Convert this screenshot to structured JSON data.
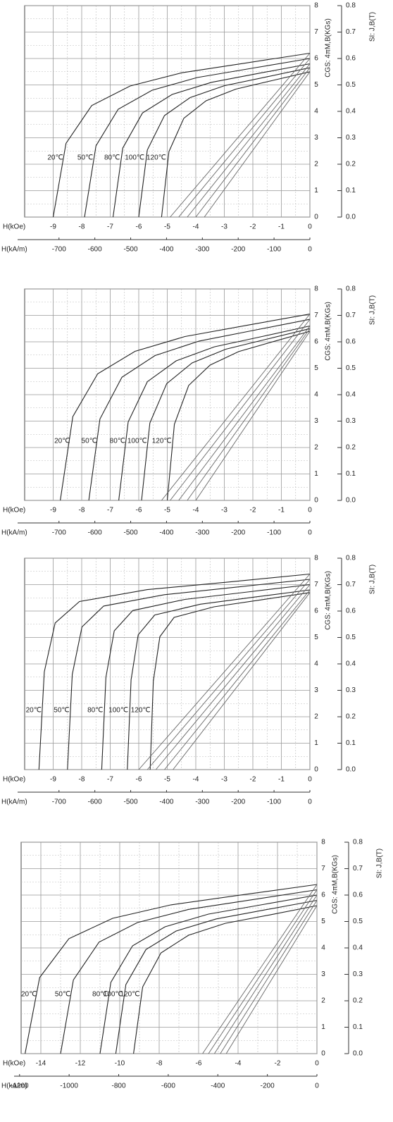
{
  "chart_data": [
    {
      "type": "line",
      "x_label": "H(kOe)",
      "x2_label": "H(kA/m)",
      "y_label": "CGS: 4πM,B(KGs)",
      "y2_label": "SI: J,B(T)",
      "grid": true,
      "xlim": [
        -10,
        0
      ],
      "xticks": [
        -9,
        -8,
        -7,
        -6,
        -5,
        -4,
        -3,
        -2,
        -1,
        0
      ],
      "x2lim": [
        -795.8,
        0
      ],
      "x2ticks": [
        -700,
        -600,
        -500,
        -400,
        -300,
        -200,
        -100,
        0
      ],
      "ylim": [
        0,
        8
      ],
      "yticks": [
        0,
        1,
        2,
        3,
        4,
        5,
        6,
        7,
        8
      ],
      "y2lim": [
        0,
        0.8
      ],
      "y2ticks": [
        {
          "value": 0,
          "label": "0.0"
        },
        0.1,
        0.2,
        0.3,
        0.4,
        0.5,
        0.6,
        0.7,
        0.8
      ],
      "series": [
        {
          "name": "20℃",
          "color": "#222222",
          "x": [
            -9,
            -8.55,
            -7.65,
            -6.3,
            -4.5,
            -2.25,
            0
          ],
          "values": [
            0,
            2.79,
            4.22,
            4.96,
            5.46,
            5.83,
            6.2
          ]
        },
        {
          "name": "50℃",
          "color": "#222222",
          "x": [
            -7.9,
            -7.5,
            -6.72,
            -5.53,
            -3.95,
            -1.98,
            0
          ],
          "values": [
            0,
            2.7,
            4.08,
            4.8,
            5.28,
            5.64,
            6.0
          ]
        },
        {
          "name": "80℃",
          "color": "#222222",
          "x": [
            -6.9,
            -6.56,
            -5.87,
            -4.83,
            -3.45,
            -1.73,
            0
          ],
          "values": [
            0,
            2.61,
            3.94,
            4.64,
            5.1,
            5.45,
            5.8
          ]
        },
        {
          "name": "100℃",
          "color": "#222222",
          "x": [
            -6.0,
            -5.7,
            -5.1,
            -4.2,
            -3.0,
            -1.5,
            0
          ],
          "values": [
            0,
            2.54,
            3.84,
            4.52,
            4.97,
            5.31,
            5.65
          ]
        },
        {
          "name": "120℃",
          "color": "#222222",
          "x": [
            -5.2,
            -4.94,
            -4.42,
            -3.64,
            -2.6,
            -1.3,
            0
          ],
          "values": [
            0,
            2.48,
            3.74,
            4.4,
            4.84,
            5.17,
            5.5
          ]
        }
      ],
      "b_lines": [
        {
          "color": "#666666",
          "x": [
            -4.9,
            0
          ],
          "values": [
            0,
            6.2
          ]
        },
        {
          "color": "#666666",
          "x": [
            -4.6,
            0
          ],
          "values": [
            0,
            6.0
          ]
        },
        {
          "color": "#666666",
          "x": [
            -4.3,
            0
          ],
          "values": [
            0,
            5.8
          ]
        },
        {
          "color": "#666666",
          "x": [
            -4.0,
            0
          ],
          "values": [
            0,
            5.65
          ]
        },
        {
          "color": "#666666",
          "x": [
            -3.7,
            0
          ],
          "values": [
            0,
            5.5
          ]
        }
      ]
    },
    {
      "type": "line",
      "x_label": "H(kOe)",
      "x2_label": "H(kA/m)",
      "y_label": "CGS: 4πM,B(KGs)",
      "y2_label": "SI: J,B(T)",
      "grid": true,
      "xlim": [
        -10,
        0
      ],
      "xticks": [
        -9,
        -8,
        -7,
        -6,
        -5,
        -4,
        -3,
        -2,
        -1,
        0
      ],
      "x2lim": [
        -795.8,
        0
      ],
      "x2ticks": [
        -700,
        -600,
        -500,
        -400,
        -300,
        -200,
        -100,
        0
      ],
      "ylim": [
        0,
        8
      ],
      "yticks": [
        0,
        1,
        2,
        3,
        4,
        5,
        6,
        7,
        8
      ],
      "y2lim": [
        0,
        0.8
      ],
      "y2ticks": [
        {
          "value": 0,
          "label": "0.0"
        },
        0.1,
        0.2,
        0.3,
        0.4,
        0.5,
        0.6,
        0.7,
        0.8
      ],
      "series": [
        {
          "name": "20℃",
          "color": "#222222",
          "x": [
            -8.75,
            -8.31,
            -7.44,
            -6.13,
            -4.38,
            -2.19,
            0
          ],
          "values": [
            0,
            3.17,
            4.79,
            5.64,
            6.2,
            6.63,
            7.05
          ]
        },
        {
          "name": "50℃",
          "color": "#222222",
          "x": [
            -7.75,
            -7.36,
            -6.59,
            -5.43,
            -3.88,
            -1.94,
            0
          ],
          "values": [
            0,
            3.08,
            4.66,
            5.48,
            6.03,
            6.44,
            6.85
          ]
        },
        {
          "name": "80℃",
          "color": "#222222",
          "x": [
            -6.7,
            -6.37,
            -5.7,
            -4.69,
            -3.35,
            -1.68,
            0
          ],
          "values": [
            0,
            2.97,
            4.49,
            5.28,
            5.81,
            6.2,
            6.6
          ]
        },
        {
          "name": "100℃",
          "color": "#222222",
          "x": [
            -5.9,
            -5.61,
            -5.02,
            -4.13,
            -2.95,
            -1.48,
            0
          ],
          "values": [
            0,
            2.93,
            4.42,
            5.2,
            5.72,
            6.11,
            6.5
          ]
        },
        {
          "name": "120℃",
          "color": "#222222",
          "x": [
            -5.0,
            -4.75,
            -4.25,
            -3.5,
            -2.5,
            -1.25,
            0
          ],
          "values": [
            0,
            2.88,
            4.35,
            5.12,
            5.63,
            6.02,
            6.4
          ]
        }
      ],
      "b_lines": [
        {
          "color": "#666666",
          "x": [
            -5.2,
            0
          ],
          "values": [
            0,
            7.05
          ]
        },
        {
          "color": "#666666",
          "x": [
            -4.9,
            0
          ],
          "values": [
            0,
            6.85
          ]
        },
        {
          "color": "#666666",
          "x": [
            -4.6,
            0
          ],
          "values": [
            0,
            6.6
          ]
        },
        {
          "color": "#666666",
          "x": [
            -4.3,
            0
          ],
          "values": [
            0,
            6.5
          ]
        },
        {
          "color": "#666666",
          "x": [
            -4.0,
            0
          ],
          "values": [
            0,
            6.4
          ]
        }
      ]
    },
    {
      "type": "line",
      "x_label": "H(kOe)",
      "x2_label": "H(kA/m)",
      "y_label": "CGS: 4πM,B(KGs)",
      "y2_label": "SI: J,B(T)",
      "grid": true,
      "xlim": [
        -10,
        0
      ],
      "xticks": [
        -9,
        -8,
        -7,
        -6,
        -5,
        -4,
        -3,
        -2,
        -1,
        0
      ],
      "x2lim": [
        -795.8,
        0
      ],
      "x2ticks": [
        -700,
        -600,
        -500,
        -400,
        -300,
        -200,
        -100,
        0
      ],
      "ylim": [
        0,
        8
      ],
      "yticks": [
        0,
        1,
        2,
        3,
        4,
        5,
        6,
        7,
        8
      ],
      "y2lim": [
        0,
        0.8
      ],
      "y2ticks": [
        {
          "value": 0,
          "label": "0.0"
        },
        0.1,
        0.2,
        0.3,
        0.4,
        0.5,
        0.6,
        0.7,
        0.8
      ],
      "series": [
        {
          "name": "20℃",
          "color": "#222222",
          "x": [
            -9.5,
            -9.31,
            -8.93,
            -8.08,
            -5.7,
            -2.85,
            0
          ],
          "values": [
            0,
            3.7,
            5.55,
            6.36,
            6.81,
            7.1,
            7.4
          ]
        },
        {
          "name": "50℃",
          "color": "#222222",
          "x": [
            -8.5,
            -8.33,
            -7.99,
            -7.23,
            -5.1,
            -2.55,
            0
          ],
          "values": [
            0,
            3.6,
            5.4,
            6.19,
            6.62,
            6.91,
            7.2
          ]
        },
        {
          "name": "80℃",
          "color": "#222222",
          "x": [
            -7.3,
            -7.15,
            -6.86,
            -6.21,
            -4.38,
            -2.19,
            0
          ],
          "values": [
            0,
            3.5,
            5.25,
            6.02,
            6.44,
            6.72,
            7.0
          ]
        },
        {
          "name": "100℃",
          "color": "#222222",
          "x": [
            -6.4,
            -6.27,
            -6.02,
            -5.44,
            -3.84,
            -1.92,
            0
          ],
          "values": [
            0,
            3.4,
            5.1,
            5.85,
            6.26,
            6.53,
            6.8
          ]
        },
        {
          "name": "120℃",
          "color": "#222222",
          "x": [
            -5.6,
            -5.49,
            -5.26,
            -4.76,
            -3.36,
            -1.68,
            0
          ],
          "values": [
            0,
            3.35,
            5.03,
            5.76,
            6.16,
            6.43,
            6.7
          ]
        }
      ],
      "b_lines": [
        {
          "color": "#666666",
          "x": [
            -6.0,
            0
          ],
          "values": [
            0,
            7.4
          ]
        },
        {
          "color": "#666666",
          "x": [
            -5.7,
            0
          ],
          "values": [
            0,
            7.2
          ]
        },
        {
          "color": "#666666",
          "x": [
            -5.4,
            0
          ],
          "values": [
            0,
            7.0
          ]
        },
        {
          "color": "#666666",
          "x": [
            -5.1,
            0
          ],
          "values": [
            0,
            6.8
          ]
        },
        {
          "color": "#666666",
          "x": [
            -4.8,
            0
          ],
          "values": [
            0,
            6.7
          ]
        }
      ]
    },
    {
      "type": "line",
      "x_label": "H(kOe)",
      "x2_label": "H(kA/m)",
      "y_label": "CGS: 4πM,B(KGs)",
      "y2_label": "SI: J,B(T)",
      "grid": true,
      "xlim": [
        -15,
        0
      ],
      "xticks": [
        -14,
        -12,
        -10,
        -8,
        -6,
        -4,
        -2,
        0
      ],
      "x2lim": [
        -1193.7,
        0
      ],
      "x2ticks": [
        -1200,
        -1000,
        -800,
        -600,
        -400,
        -200,
        0
      ],
      "ylim": [
        0,
        8
      ],
      "yticks": [
        0,
        1,
        2,
        3,
        4,
        5,
        6,
        7,
        8
      ],
      "y2lim": [
        0,
        0.8
      ],
      "y2ticks": [
        {
          "value": 0,
          "label": "0.0"
        },
        0.1,
        0.2,
        0.3,
        0.4,
        0.5,
        0.6,
        0.7,
        0.8
      ],
      "series": [
        {
          "name": "20℃",
          "color": "#222222",
          "x": [
            -14.8,
            -14.06,
            -12.58,
            -10.36,
            -7.4,
            -3.7,
            0
          ],
          "values": [
            0,
            2.88,
            4.35,
            5.12,
            5.63,
            6.02,
            6.4
          ]
        },
        {
          "name": "50℃",
          "color": "#222222",
          "x": [
            -13,
            -12.35,
            -11.05,
            -9.1,
            -6.5,
            -3.25,
            0
          ],
          "values": [
            0,
            2.79,
            4.22,
            4.96,
            5.46,
            5.83,
            6.2
          ]
        },
        {
          "name": "80℃",
          "color": "#222222",
          "x": [
            -11,
            -10.45,
            -9.35,
            -7.7,
            -5.5,
            -2.75,
            0
          ],
          "values": [
            0,
            2.7,
            4.08,
            4.8,
            5.28,
            5.64,
            6.0
          ]
        },
        {
          "name": "100℃",
          "color": "#222222",
          "x": [
            -10.2,
            -9.69,
            -8.67,
            -7.14,
            -5.1,
            -2.55,
            0
          ],
          "values": [
            0,
            2.61,
            3.94,
            4.64,
            5.1,
            5.45,
            5.8
          ]
        },
        {
          "name": "120℃",
          "color": "#222222",
          "x": [
            -9.3,
            -8.84,
            -7.91,
            -6.51,
            -4.65,
            -2.33,
            0
          ],
          "values": [
            0,
            2.52,
            3.81,
            4.48,
            4.93,
            5.26,
            5.6
          ]
        }
      ],
      "b_lines": [
        {
          "color": "#666666",
          "x": [
            -5.8,
            0
          ],
          "values": [
            0,
            6.4
          ]
        },
        {
          "color": "#666666",
          "x": [
            -5.5,
            0
          ],
          "values": [
            0,
            6.2
          ]
        },
        {
          "color": "#666666",
          "x": [
            -5.2,
            0
          ],
          "values": [
            0,
            6.0
          ]
        },
        {
          "color": "#666666",
          "x": [
            -4.9,
            0
          ],
          "values": [
            0,
            5.8
          ]
        },
        {
          "color": "#666666",
          "x": [
            -4.6,
            0
          ],
          "values": [
            0,
            5.6
          ]
        }
      ]
    }
  ]
}
